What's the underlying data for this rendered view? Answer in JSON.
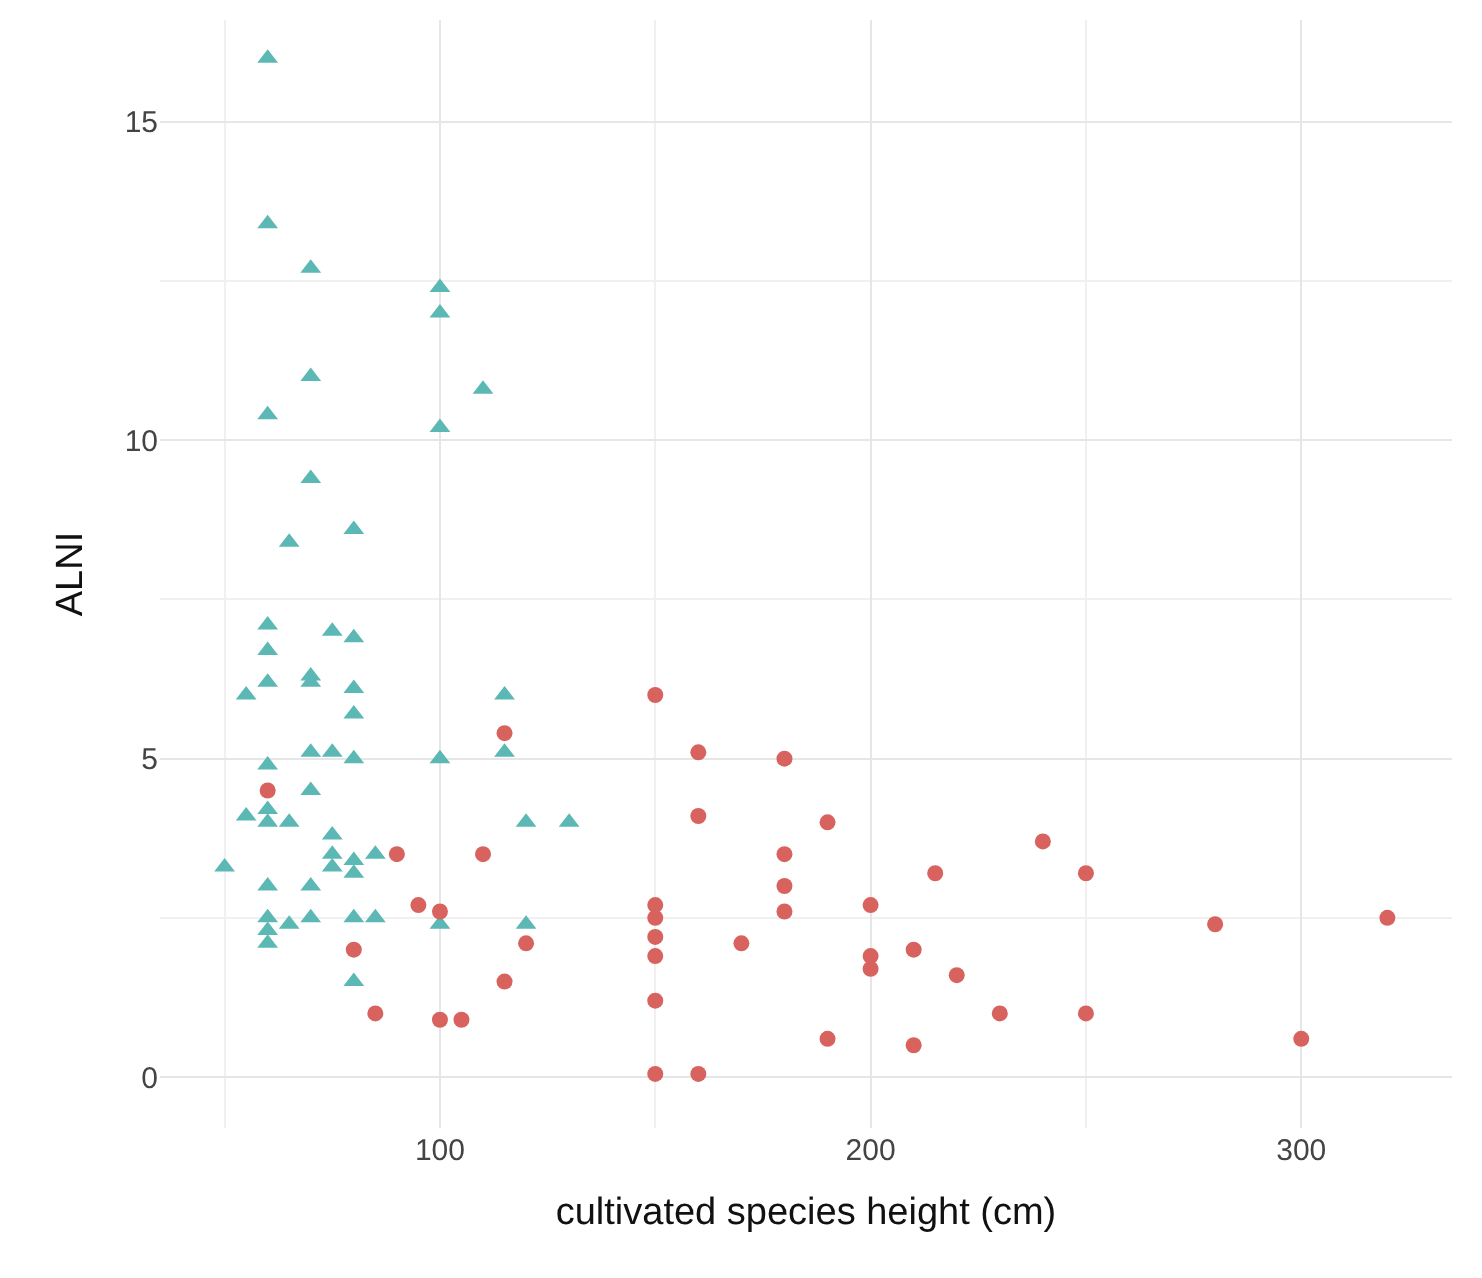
{
  "chart_data": {
    "type": "scatter",
    "xlabel": "cultivated species height (cm)",
    "ylabel": "ALNI",
    "xlim": [
      35,
      335
    ],
    "ylim": [
      -0.8,
      16.6
    ],
    "xticks": [
      100,
      200,
      300
    ],
    "yticks": [
      0,
      5,
      10,
      15
    ],
    "grid": true,
    "series": [
      {
        "color": "#5bb8b4",
        "marker": "triangle",
        "x": [
          60,
          60,
          70,
          70,
          60,
          100,
          100,
          100,
          110,
          65,
          70,
          80,
          60,
          60,
          60,
          55,
          70,
          70,
          75,
          80,
          80,
          80,
          70,
          75,
          80,
          100,
          115,
          115,
          60,
          70,
          55,
          60,
          60,
          65,
          75,
          75,
          80,
          80,
          85,
          50,
          60,
          70,
          75,
          60,
          60,
          60,
          65,
          70,
          80,
          85,
          80,
          100,
          120,
          130,
          120
        ],
        "values": [
          16.0,
          13.4,
          12.7,
          11.0,
          10.4,
          12.4,
          12.0,
          10.2,
          10.8,
          8.4,
          9.4,
          8.6,
          7.1,
          6.7,
          6.2,
          6.0,
          6.3,
          6.2,
          7.0,
          6.9,
          6.1,
          5.7,
          5.1,
          5.1,
          5.0,
          5.0,
          6.0,
          5.1,
          4.9,
          4.5,
          4.1,
          4.2,
          4.0,
          4.0,
          3.8,
          3.5,
          3.4,
          3.2,
          3.5,
          3.3,
          3.0,
          3.0,
          3.3,
          2.5,
          2.3,
          2.1,
          2.4,
          2.5,
          2.5,
          2.5,
          1.5,
          2.4,
          4.0,
          4.0,
          2.4
        ]
      },
      {
        "color": "#d8635e",
        "marker": "circle",
        "x": [
          60,
          90,
          110,
          95,
          100,
          80,
          85,
          100,
          105,
          115,
          120,
          115,
          150,
          160,
          180,
          160,
          180,
          190,
          150,
          150,
          150,
          150,
          150,
          170,
          180,
          180,
          200,
          200,
          200,
          210,
          215,
          220,
          190,
          210,
          230,
          240,
          250,
          250,
          280,
          300,
          320,
          150,
          160
        ],
        "values": [
          4.5,
          3.5,
          3.5,
          2.7,
          2.6,
          2.0,
          1.0,
          0.9,
          0.9,
          1.5,
          2.1,
          5.4,
          6.0,
          5.1,
          5.0,
          4.1,
          3.5,
          4.0,
          2.7,
          2.5,
          2.2,
          1.9,
          1.2,
          2.1,
          3.0,
          2.6,
          2.7,
          1.9,
          1.7,
          2.0,
          3.2,
          1.6,
          0.6,
          0.5,
          1.0,
          3.7,
          3.2,
          1.0,
          2.4,
          0.6,
          2.5,
          0.05,
          0.05
        ]
      }
    ]
  }
}
